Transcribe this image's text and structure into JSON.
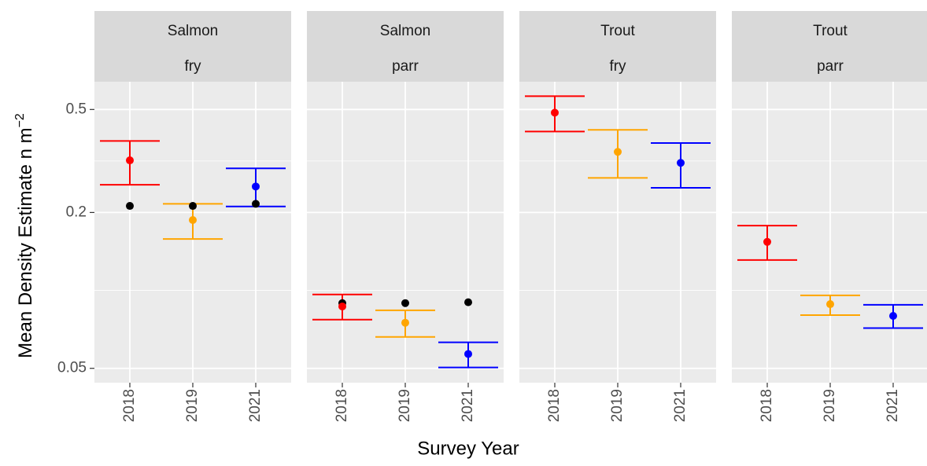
{
  "chart_data": {
    "type": "errorbar",
    "y_label": "Mean Density Estimate n m",
    "y_label_sup": "−2",
    "x_label": "Survey Year",
    "log_y": true,
    "grid": true,
    "ylim": [
      0.044,
      0.64
    ],
    "yticks": [
      0.05,
      0.2,
      0.5
    ],
    "colors": [
      "#ff0000",
      "#ffa500",
      "#0000ff"
    ],
    "observed_color": "#000000",
    "panels": [
      {
        "species": "Salmon",
        "stage": "fry",
        "categories": [
          "2018",
          "2019",
          "2021"
        ],
        "values": [
          0.318,
          0.187,
          0.252
        ],
        "lower": [
          0.256,
          0.158,
          0.211
        ],
        "upper": [
          0.378,
          0.216,
          0.296
        ],
        "observed": [
          0.212,
          0.212,
          0.216
        ]
      },
      {
        "species": "Salmon",
        "stage": "parr",
        "categories": [
          "2018",
          "2019",
          "2021"
        ],
        "values": [
          0.0867,
          0.075,
          0.0568
        ],
        "lower": [
          0.0771,
          0.0661,
          0.0504
        ],
        "upper": [
          0.0964,
          0.0838,
          0.063
        ],
        "observed": [
          0.0893,
          0.0893,
          0.09
        ]
      },
      {
        "species": "Trout",
        "stage": "fry",
        "categories": [
          "2018",
          "2019",
          "2021"
        ],
        "values": [
          0.486,
          0.343,
          0.311
        ],
        "lower": [
          0.411,
          0.272,
          0.249
        ],
        "upper": [
          0.563,
          0.417,
          0.371
        ]
      },
      {
        "species": "Trout",
        "stage": "parr",
        "categories": [
          "2018",
          "2019",
          "2021"
        ],
        "values": [
          0.154,
          0.0885,
          0.0797
        ],
        "lower": [
          0.131,
          0.0803,
          0.0715
        ],
        "upper": [
          0.178,
          0.0957,
          0.088
        ]
      }
    ]
  }
}
